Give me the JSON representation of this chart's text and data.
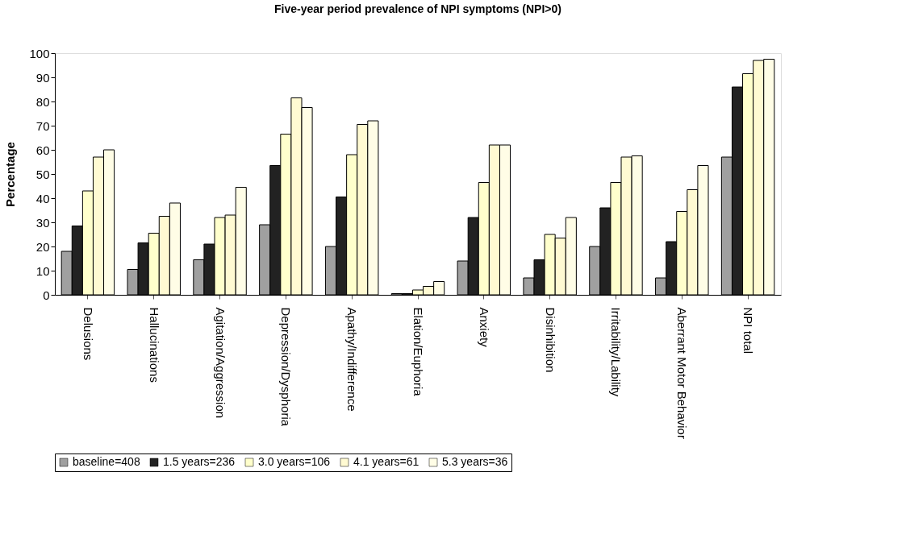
{
  "chart_data": {
    "type": "bar",
    "title": "Five-year period prevalence of NPI symptoms (NPI>0)",
    "ylabel": "Percentage",
    "categories": [
      "Delusions",
      "Hallucinations",
      "Agitation/Aggression",
      "Depression/Dysphoria",
      "Apathy/Indifference",
      "Elation/Euphoria",
      "Anxiety",
      "Disinhibition",
      "Irritability/Lability",
      "Aberrant Motor Behavior",
      "NPI total"
    ],
    "series": [
      {
        "name": "baseline=408",
        "color": "#a0a0a0",
        "values": [
          18,
          10.5,
          14.5,
          29,
          20,
          0.5,
          14,
          7,
          20,
          7,
          57
        ]
      },
      {
        "name": "1.5 years=236",
        "color": "#222222",
        "values": [
          28.5,
          21.5,
          21,
          53.5,
          40.5,
          0.5,
          32,
          14.5,
          36,
          22,
          86
        ]
      },
      {
        "name": "3.0 years=106",
        "color": "#ffffcc",
        "values": [
          43,
          25.5,
          32,
          66.5,
          58,
          2,
          46.5,
          25,
          46.5,
          34.5,
          91.5
        ]
      },
      {
        "name": "4.1 years=61",
        "color": "#fffad2",
        "values": [
          57,
          32.5,
          33,
          81.5,
          70.5,
          3.5,
          62,
          23.5,
          57,
          43.5,
          97
        ]
      },
      {
        "name": "5.3 years=36",
        "color": "#fffde6",
        "values": [
          60,
          38,
          44.5,
          77.5,
          72,
          5.5,
          62,
          32,
          57.5,
          53.5,
          97.5
        ]
      }
    ],
    "ylim": [
      0,
      100
    ],
    "yticks": [
      0,
      10,
      20,
      30,
      40,
      50,
      60,
      70,
      80,
      90,
      100
    ],
    "grid": false,
    "legend": "bottom"
  }
}
